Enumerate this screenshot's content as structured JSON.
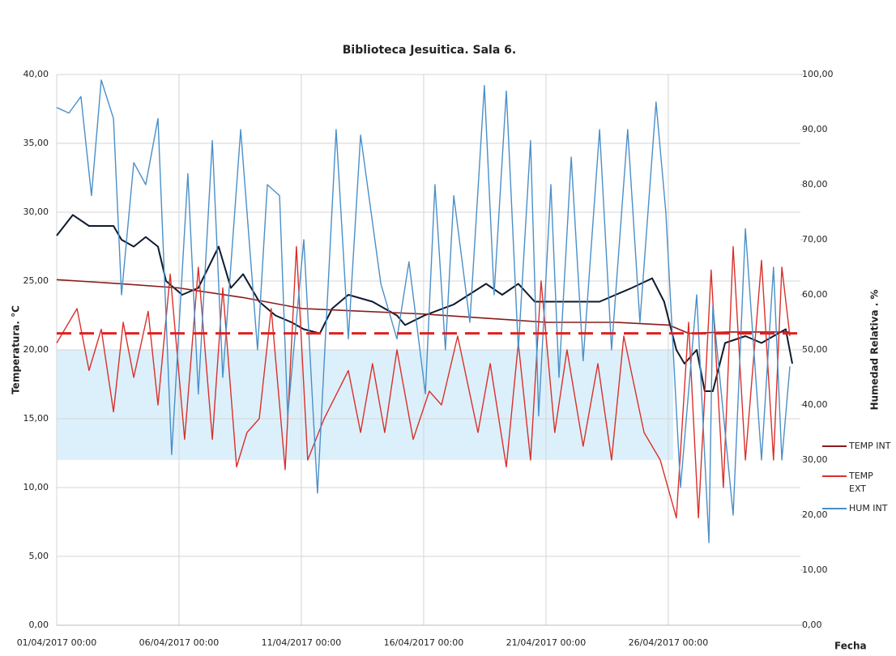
{
  "chart_data": {
    "type": "line",
    "title": "Biblioteca Jesuitica. Sala 6.",
    "y_label": "Temperatura. °C",
    "y2_label": "Humedad Relativa . %",
    "x_label": "Fecha",
    "xlim": [
      0,
      30.4
    ],
    "xticks": [
      {
        "value": 0,
        "label": "01/04/2017 00:00"
      },
      {
        "value": 5,
        "label": "06/04/2017 00:00"
      },
      {
        "value": 10,
        "label": "11/04/2017 00:00"
      },
      {
        "value": 15,
        "label": "16/04/2017 00:00"
      },
      {
        "value": 20,
        "label": "21/04/2017 00:00"
      },
      {
        "value": 25,
        "label": "26/04/2017 00:00"
      }
    ],
    "ylim": [
      0,
      40
    ],
    "yticks": [
      {
        "value": 0,
        "label": "0,00"
      },
      {
        "value": 5,
        "label": "5,00"
      },
      {
        "value": 10,
        "label": "10,00"
      },
      {
        "value": 15,
        "label": "15,00"
      },
      {
        "value": 20,
        "label": "20,00"
      },
      {
        "value": 25,
        "label": "25,00"
      },
      {
        "value": 30,
        "label": "30,00"
      },
      {
        "value": 35,
        "label": "35,00"
      },
      {
        "value": 40,
        "label": "40,00"
      }
    ],
    "y2lim": [
      0,
      100
    ],
    "y2ticks": [
      {
        "value": 0,
        "label": "0,00"
      },
      {
        "value": 10,
        "label": "10,00"
      },
      {
        "value": 20,
        "label": "20,00"
      },
      {
        "value": 30,
        "label": "30,00"
      },
      {
        "value": 40,
        "label": "40,00"
      },
      {
        "value": 50,
        "label": "50,00"
      },
      {
        "value": 60,
        "label": "60,00"
      },
      {
        "value": 70,
        "label": "70,00"
      },
      {
        "value": 80,
        "label": "80,00"
      },
      {
        "value": 90,
        "label": "90,00"
      },
      {
        "value": 100,
        "label": "100,00"
      }
    ],
    "grid": true,
    "legend": "right",
    "band": {
      "axis": "y2",
      "range": [
        30,
        50
      ],
      "x_range": [
        0,
        25.2
      ],
      "color": "#dcf0fb"
    },
    "reference_line": {
      "value": 21.2,
      "color": "#e0201f",
      "dashed": true
    },
    "series": [
      {
        "color": "#0d1a2e",
        "width": 2,
        "x": [
          0,
          0.66,
          1.32,
          2.32,
          2.65,
          3.15,
          3.64,
          4.14,
          4.47,
          5.13,
          5.79,
          6.62,
          7.12,
          7.62,
          8.28,
          8.94,
          9.6,
          10.1,
          10.76,
          11.26,
          11.92,
          12.91,
          13.91,
          14.24,
          15.03,
          16.23,
          17.55,
          18.21,
          18.87,
          19.54,
          20.86,
          22.19,
          23.51,
          24.34,
          24.83,
          25.33,
          25.66,
          26.16,
          26.49,
          26.82,
          27.32,
          28.15,
          28.81,
          29.3,
          29.8,
          30.07
        ],
        "values": [
          28.3,
          29.8,
          29,
          29,
          28,
          27.5,
          28.2,
          27.5,
          25,
          24,
          24.5,
          27.5,
          24.5,
          25.5,
          23.5,
          22.5,
          22,
          21.5,
          21.2,
          23,
          24,
          23.5,
          22.5,
          21.8,
          22.5,
          23.3,
          24.8,
          24,
          24.8,
          23.5,
          23.5,
          23.5,
          24.5,
          25.2,
          23.5,
          20,
          19,
          20,
          17,
          17,
          20.5,
          21,
          20.5,
          21,
          21.5,
          19
        ]
      },
      {
        "name": "TEMP INT",
        "color": "#8b1a1a",
        "width": 1.6,
        "x": [
          0,
          2.65,
          4.97,
          7.62,
          10.03,
          12.58,
          15.03,
          17.55,
          20.03,
          22.85,
          25.03,
          25.83,
          27.48,
          29.97
        ],
        "values": [
          25.1,
          24.8,
          24.5,
          23.8,
          23,
          22.8,
          22.6,
          22.3,
          22,
          22,
          21.8,
          21.2,
          21.3,
          21.3
        ]
      },
      {
        "name": "TEMP EXT",
        "color": "#d9302b",
        "width": 1.4,
        "x": [
          0,
          0.83,
          1.32,
          1.82,
          2.32,
          2.72,
          3.15,
          3.74,
          4.14,
          4.64,
          5.23,
          5.79,
          6.36,
          6.79,
          7.35,
          7.78,
          8.28,
          8.77,
          9.34,
          9.8,
          10.26,
          10.93,
          11.92,
          12.42,
          12.91,
          13.41,
          13.91,
          14.57,
          15.23,
          15.73,
          16.39,
          17.22,
          17.72,
          18.38,
          18.87,
          19.37,
          19.8,
          20.36,
          20.86,
          21.52,
          22.12,
          22.68,
          23.18,
          24.01,
          24.67,
          25.33,
          25.83,
          26.23,
          26.75,
          27.25,
          27.65,
          28.15,
          28.81,
          29.3,
          29.64,
          29.97
        ],
        "values": [
          20.5,
          23,
          18.5,
          21.5,
          15.5,
          22,
          18,
          22.8,
          16,
          25.5,
          13.5,
          26,
          13.5,
          24.5,
          11.5,
          14,
          15,
          23,
          11.3,
          27.5,
          12,
          15,
          18.5,
          14,
          19,
          14,
          20,
          13.5,
          17,
          16,
          21,
          14,
          19,
          11.5,
          20.5,
          12,
          25,
          14,
          20,
          13,
          19,
          12,
          21,
          14,
          12,
          7.8,
          22,
          7.8,
          25.8,
          10,
          27.5,
          12,
          26.5,
          12,
          26,
          21
        ]
      },
      {
        "name": "HUM INT",
        "color": "#4a8fc8",
        "width": 1.4,
        "axis": "y2",
        "x": [
          0,
          0.5,
          0.99,
          1.42,
          1.82,
          2.32,
          2.65,
          3.15,
          3.64,
          4.14,
          4.7,
          5.36,
          5.79,
          6.36,
          6.79,
          7.52,
          8.21,
          8.61,
          9.11,
          9.44,
          10.1,
          10.66,
          11.42,
          11.92,
          12.42,
          13.25,
          13.91,
          14.4,
          15.07,
          15.46,
          15.89,
          16.23,
          16.89,
          17.48,
          17.88,
          18.38,
          18.87,
          19.37,
          19.7,
          20.2,
          20.53,
          21.03,
          21.52,
          22.19,
          22.68,
          23.34,
          23.84,
          24.5,
          24.9,
          25.5,
          26.16,
          26.66,
          26.82,
          27.65,
          28.15,
          28.81,
          29.3,
          29.64,
          29.97
        ],
        "values": [
          94,
          93,
          96,
          78,
          99,
          92,
          60,
          84,
          80,
          92,
          31,
          82,
          42,
          88,
          45,
          90,
          50,
          80,
          78,
          38,
          70,
          24,
          90,
          52,
          89,
          62,
          52,
          66,
          42,
          80,
          50,
          78,
          55,
          98,
          60,
          97,
          50,
          88,
          38,
          80,
          45,
          85,
          48,
          90,
          50,
          90,
          55,
          95,
          75,
          25,
          60,
          15,
          58,
          20,
          72,
          30,
          65,
          30,
          47
        ]
      }
    ]
  }
}
